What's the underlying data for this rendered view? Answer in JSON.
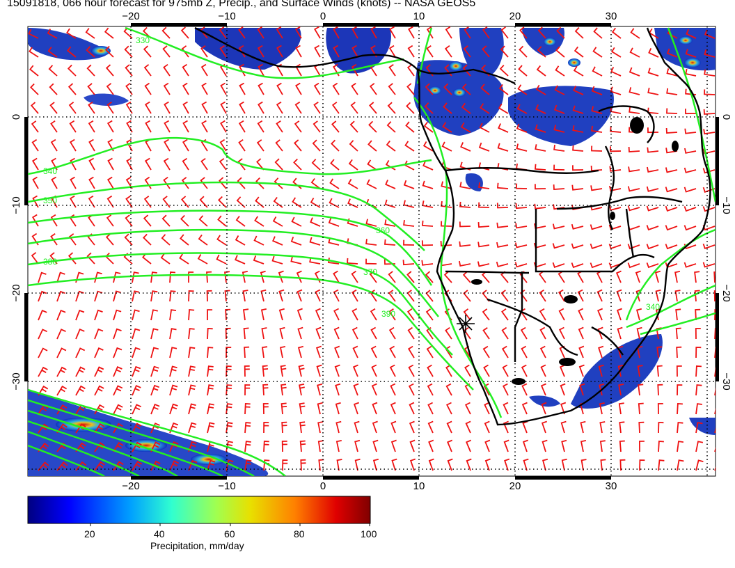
{
  "title": "15091818, 066 hour forecast for 975mb Z, Precip., and Surface Winds (knots) -- NASA GEOS5",
  "map": {
    "lon_ticks_top": [
      "−20",
      "−10",
      "0",
      "10",
      "20",
      "30"
    ],
    "lon_ticks_bottom": [
      "−20",
      "−10",
      "0",
      "10",
      "20",
      "30"
    ],
    "lat_ticks_left": [
      "0",
      "−10",
      "−20",
      "−30"
    ],
    "lat_ticks_right": [
      "0",
      "−10",
      "−20",
      "−30"
    ],
    "contour_labels": [
      "330",
      "340",
      "350",
      "360",
      "370",
      "380",
      "390",
      "340"
    ],
    "colors": {
      "contour": "#22ee22",
      "barb": "#ee1111",
      "coast": "#000000"
    }
  },
  "colorbar": {
    "labels": [
      "20",
      "40",
      "60",
      "80",
      "100"
    ],
    "title": "Precipitation, mm/day"
  }
}
